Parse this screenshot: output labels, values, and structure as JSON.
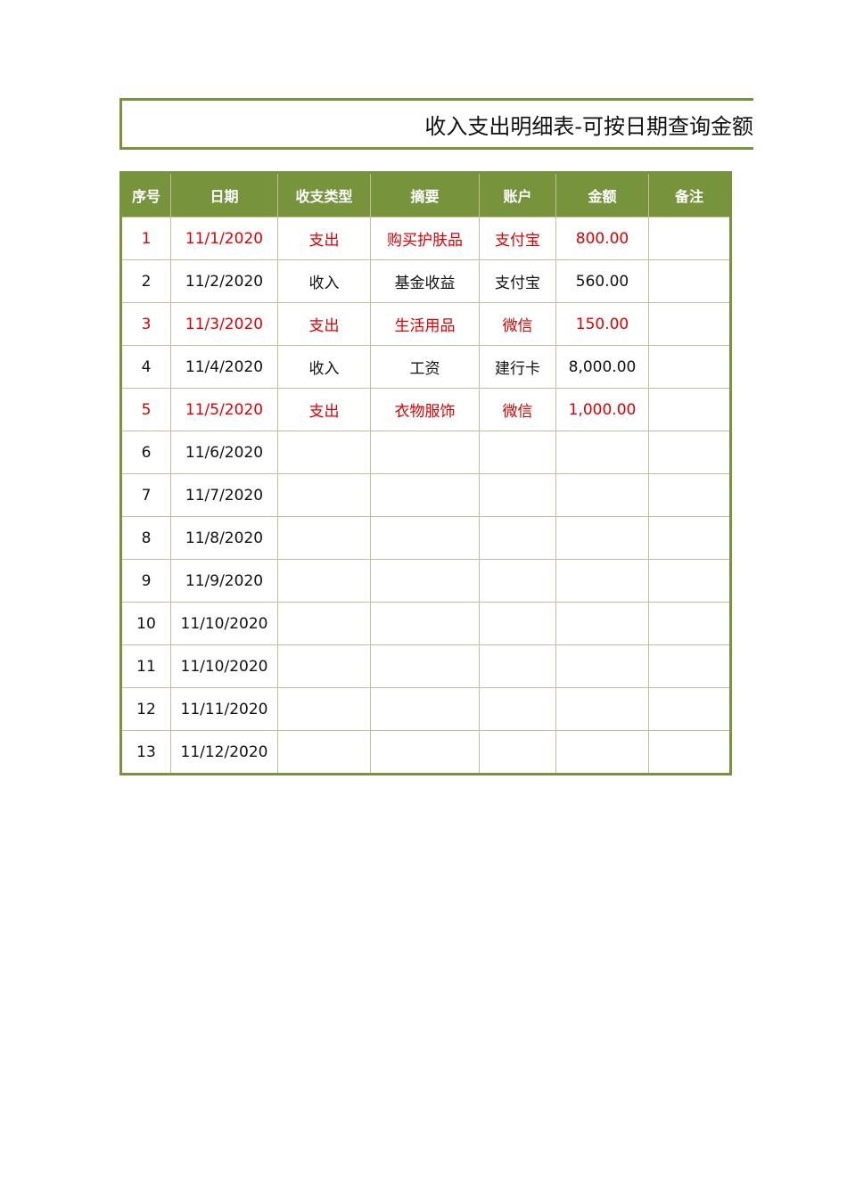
{
  "title": "收入支出明细表-可按日期查询金额",
  "colors": {
    "header_bg": "#77933c",
    "expense_text": "#e00000",
    "grid": "#c4bd97"
  },
  "columns": [
    "序号",
    "日期",
    "收支类型",
    "摘要",
    "账户",
    "金额",
    "备注"
  ],
  "rows": [
    {
      "no": "1",
      "date": "11/1/2020",
      "type": "支出",
      "summary": "购买护肤品",
      "account": "支付宝",
      "amount": "800.00",
      "note": "",
      "highlight": true
    },
    {
      "no": "2",
      "date": "11/2/2020",
      "type": "收入",
      "summary": "基金收益",
      "account": "支付宝",
      "amount": "560.00",
      "note": "",
      "highlight": false
    },
    {
      "no": "3",
      "date": "11/3/2020",
      "type": "支出",
      "summary": "生活用品",
      "account": "微信",
      "amount": "150.00",
      "note": "",
      "highlight": true
    },
    {
      "no": "4",
      "date": "11/4/2020",
      "type": "收入",
      "summary": "工资",
      "account": "建行卡",
      "amount": "8,000.00",
      "note": "",
      "highlight": false
    },
    {
      "no": "5",
      "date": "11/5/2020",
      "type": "支出",
      "summary": "衣物服饰",
      "account": "微信",
      "amount": "1,000.00",
      "note": "",
      "highlight": true
    },
    {
      "no": "6",
      "date": "11/6/2020",
      "type": "",
      "summary": "",
      "account": "",
      "amount": "",
      "note": "",
      "highlight": false
    },
    {
      "no": "7",
      "date": "11/7/2020",
      "type": "",
      "summary": "",
      "account": "",
      "amount": "",
      "note": "",
      "highlight": false
    },
    {
      "no": "8",
      "date": "11/8/2020",
      "type": "",
      "summary": "",
      "account": "",
      "amount": "",
      "note": "",
      "highlight": false
    },
    {
      "no": "9",
      "date": "11/9/2020",
      "type": "",
      "summary": "",
      "account": "",
      "amount": "",
      "note": "",
      "highlight": false
    },
    {
      "no": "10",
      "date": "11/10/2020",
      "type": "",
      "summary": "",
      "account": "",
      "amount": "",
      "note": "",
      "highlight": false
    },
    {
      "no": "11",
      "date": "11/10/2020",
      "type": "",
      "summary": "",
      "account": "",
      "amount": "",
      "note": "",
      "highlight": false
    },
    {
      "no": "12",
      "date": "11/11/2020",
      "type": "",
      "summary": "",
      "account": "",
      "amount": "",
      "note": "",
      "highlight": false
    },
    {
      "no": "13",
      "date": "11/12/2020",
      "type": "",
      "summary": "",
      "account": "",
      "amount": "",
      "note": "",
      "highlight": false
    }
  ]
}
